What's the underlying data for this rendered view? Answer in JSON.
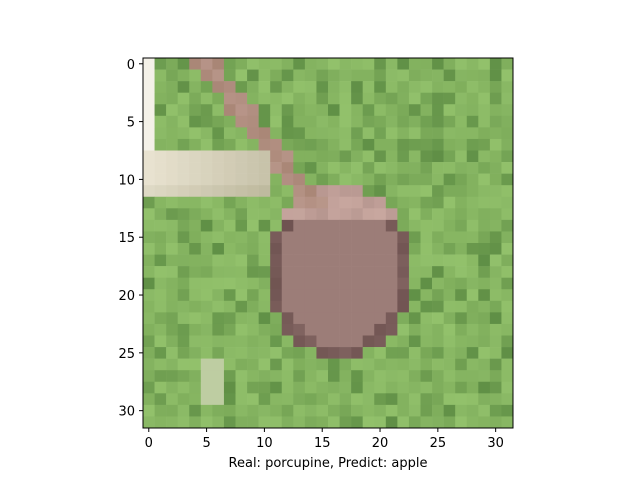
{
  "chart_data": {
    "type": "heatmap",
    "xlabel": "Real: porcupine, Predict: apple",
    "ylabel": "",
    "title": "",
    "xlim": [
      -0.5,
      31.5
    ],
    "ylim": [
      31.5,
      -0.5
    ],
    "xticks": [
      0,
      5,
      10,
      15,
      20,
      25,
      30
    ],
    "yticks": [
      0,
      5,
      10,
      15,
      20,
      25,
      30
    ],
    "xtick_labels": [
      "0",
      "5",
      "10",
      "15",
      "20",
      "25",
      "30"
    ],
    "ytick_labels": [
      "0",
      "5",
      "10",
      "15",
      "20",
      "25",
      "30"
    ],
    "image_size": [
      32,
      32
    ],
    "image_content": "pixelated 32x32 photo: brownish-pink rounded object on green grass, light stick at left",
    "grid": false
  },
  "colors": {
    "grass": "#7fae5c",
    "grass_dark": "#4f7f3a",
    "grass_light": "#9ccb73",
    "object": "#9c7d78",
    "object_light": "#c8a79f",
    "object_dark": "#6e5250",
    "stick": "#e8e2d0",
    "branch": "#a98676"
  }
}
